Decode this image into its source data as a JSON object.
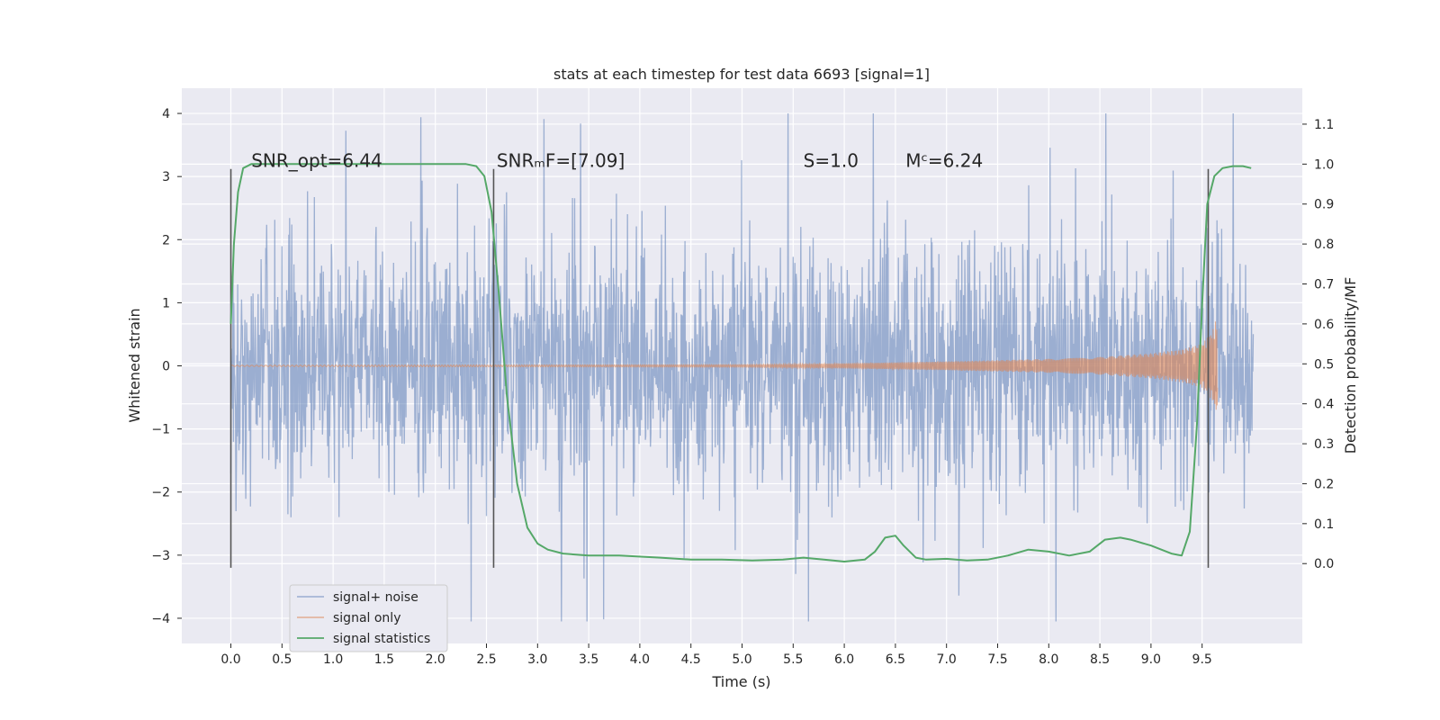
{
  "chart_data": {
    "type": "line",
    "title": "stats at each timestep for test data 6693 [signal=1]",
    "xlabel": "Time (s)",
    "ylabel_left": "Whitened strain",
    "ylabel_right": "Detection probability/MF",
    "xlim": [
      -0.48,
      10.48
    ],
    "ylim_left": [
      -4.4,
      4.4
    ],
    "ylim_right": [
      -0.2,
      1.19
    ],
    "x_ticks": [
      0.0,
      0.5,
      1.0,
      1.5,
      2.0,
      2.5,
      3.0,
      3.5,
      4.0,
      4.5,
      5.0,
      5.5,
      6.0,
      6.5,
      7.0,
      7.5,
      8.0,
      8.5,
      9.0,
      9.5
    ],
    "x_tick_labels": [
      "0.0",
      "0.5",
      "1.0",
      "1.5",
      "2.0",
      "2.5",
      "3.0",
      "3.5",
      "4.0",
      "4.5",
      "5.0",
      "5.5",
      "6.0",
      "6.5",
      "7.0",
      "7.5",
      "8.0",
      "8.5",
      "9.0",
      "9.5"
    ],
    "y_left_ticks": [
      -4,
      -3,
      -2,
      -1,
      0,
      1,
      2,
      3,
      4
    ],
    "y_left_tick_labels": [
      "−4",
      "−3",
      "−2",
      "−1",
      "0",
      "1",
      "2",
      "3",
      "4"
    ],
    "y_right_ticks": [
      0.0,
      0.1,
      0.2,
      0.3,
      0.4,
      0.5,
      0.6,
      0.7,
      0.8,
      0.9,
      1.0,
      1.1
    ],
    "y_right_tick_labels": [
      "0.0",
      "0.1",
      "0.2",
      "0.3",
      "0.4",
      "0.5",
      "0.6",
      "0.7",
      "0.8",
      "0.9",
      "1.0",
      "1.1"
    ],
    "grid": true,
    "legend_position": "lower-left",
    "series": [
      {
        "name": "signal+ noise",
        "color": "#4c72b0",
        "axis": "left",
        "style": "dense noise trace",
        "x_range": [
          0.0,
          10.0
        ],
        "approx_abs_bulk": 1.25,
        "approx_min": -4.05,
        "approx_max": 4.0
      },
      {
        "name": "signal only",
        "color": "#dd8452",
        "axis": "left",
        "style": "chirp",
        "x_range": [
          0.0,
          9.65
        ],
        "envelope": {
          "x": [
            0.0,
            5.0,
            6.0,
            7.0,
            8.0,
            8.5,
            9.0,
            9.3,
            9.5,
            9.6,
            9.65
          ],
          "amplitude": [
            0.01,
            0.02,
            0.04,
            0.07,
            0.11,
            0.14,
            0.2,
            0.26,
            0.35,
            0.55,
            0.8
          ]
        }
      },
      {
        "name": "signal statistics",
        "color": "#55a868",
        "axis": "right",
        "x": [
          0.0,
          0.03,
          0.07,
          0.12,
          0.2,
          0.3,
          0.5,
          1.0,
          1.5,
          2.0,
          2.3,
          2.4,
          2.48,
          2.55,
          2.62,
          2.7,
          2.8,
          2.9,
          3.0,
          3.1,
          3.25,
          3.5,
          3.8,
          4.2,
          4.5,
          4.8,
          5.1,
          5.4,
          5.6,
          5.8,
          6.0,
          6.2,
          6.3,
          6.4,
          6.5,
          6.58,
          6.7,
          6.8,
          7.0,
          7.2,
          7.4,
          7.6,
          7.8,
          8.0,
          8.2,
          8.4,
          8.55,
          8.7,
          8.8,
          9.0,
          9.2,
          9.3,
          9.38,
          9.45,
          9.5,
          9.55,
          9.62,
          9.7,
          9.8,
          9.9,
          9.98
        ],
        "values": [
          0.6,
          0.8,
          0.93,
          0.99,
          1.0,
          1.0,
          1.0,
          1.0,
          1.0,
          1.0,
          1.0,
          0.995,
          0.97,
          0.88,
          0.68,
          0.42,
          0.2,
          0.09,
          0.05,
          0.035,
          0.025,
          0.02,
          0.02,
          0.015,
          0.01,
          0.01,
          0.008,
          0.01,
          0.015,
          0.01,
          0.005,
          0.01,
          0.03,
          0.065,
          0.07,
          0.045,
          0.015,
          0.01,
          0.012,
          0.008,
          0.01,
          0.02,
          0.035,
          0.03,
          0.02,
          0.03,
          0.06,
          0.065,
          0.06,
          0.045,
          0.025,
          0.02,
          0.08,
          0.35,
          0.65,
          0.9,
          0.97,
          0.99,
          0.995,
          0.995,
          0.99
        ]
      }
    ],
    "vertical_lines": [
      {
        "x": 0.0,
        "ymin": -3.2,
        "ymax": 3.12,
        "color": "#555555"
      },
      {
        "x": 2.57,
        "ymin": -3.2,
        "ymax": 3.12,
        "color": "#555555"
      },
      {
        "x": 9.56,
        "ymin": -3.2,
        "ymax": 3.12,
        "color": "#555555"
      }
    ],
    "annotations": [
      {
        "text": "SNR_opt=6.44",
        "x": 0.2,
        "y": 3.25
      },
      {
        "text": "SNRₘF=[7.09]",
        "x": 2.6,
        "y": 3.25
      },
      {
        "text": "S=1.0",
        "x": 5.6,
        "y": 3.25
      },
      {
        "text": "Mᶜ=6.24",
        "x": 6.6,
        "y": 3.25
      }
    ]
  }
}
